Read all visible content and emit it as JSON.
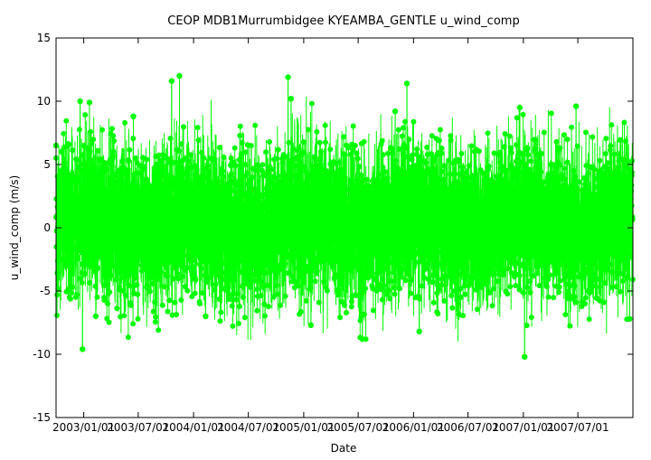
{
  "chart_data": {
    "type": "scatter",
    "title": "CEOP MDB1Murrumbidgee KYEAMBA_GENTLE  u_wind_comp",
    "xlabel": "Date",
    "ylabel": "u_wind_comp (m/s)",
    "x_range": [
      "2002-10-01",
      "2007-12-31"
    ],
    "ylim": [
      -15,
      15
    ],
    "x_ticks": [
      "2003/01/01",
      "2003/07/01",
      "2004/01/01",
      "2004/07/01",
      "2005/01/01",
      "2005/07/01",
      "2006/01/01",
      "2006/07/01",
      "2007/01/01",
      "2007/07/01"
    ],
    "y_ticks": [
      -15,
      -10,
      -5,
      0,
      5,
      10,
      15
    ],
    "grid": false,
    "series": [
      {
        "color": "#00ff00",
        "marker": "circle",
        "connected": true,
        "sampling": "half-hourly",
        "typical_range": [
          -5,
          6
        ],
        "extremes": [
          {
            "x": "2002-10-01",
            "y": 6.5
          },
          {
            "x": "2002-12-20",
            "y": 10.0
          },
          {
            "x": "2002-12-28",
            "y": -9.6
          },
          {
            "x": "2003-01-20",
            "y": 9.9
          },
          {
            "x": "2003-02-10",
            "y": -7.0
          },
          {
            "x": "2003-06-15",
            "y": 8.8
          },
          {
            "x": "2003-10-20",
            "y": 11.6
          },
          {
            "x": "2003-11-15",
            "y": 12.0
          },
          {
            "x": "2004-02-10",
            "y": -7.0
          },
          {
            "x": "2004-11-10",
            "y": 11.9
          },
          {
            "x": "2004-11-20",
            "y": 10.2
          },
          {
            "x": "2005-01-25",
            "y": -7.7
          },
          {
            "x": "2005-07-15",
            "y": -8.8
          },
          {
            "x": "2005-11-01",
            "y": 9.2
          },
          {
            "x": "2005-12-10",
            "y": 11.4
          },
          {
            "x": "2006-01-20",
            "y": -8.2
          },
          {
            "x": "2006-12-20",
            "y": 9.5
          },
          {
            "x": "2007-01-05",
            "y": -10.2
          },
          {
            "x": "2007-06-25",
            "y": 9.6
          },
          {
            "x": "2007-12-20",
            "y": -7.2
          }
        ]
      }
    ]
  }
}
